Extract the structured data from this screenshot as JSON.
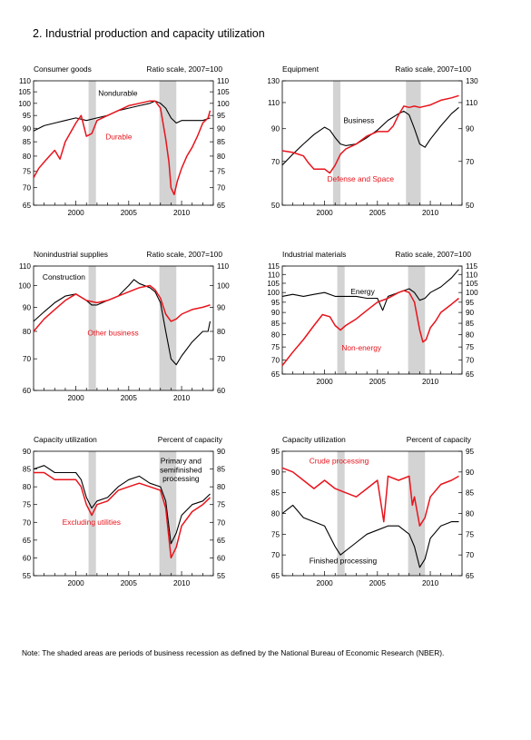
{
  "page": {
    "title": "2.  Industrial production and capacity utilization",
    "note": "Note: The shaded areas are periods of business recession as defined by the National Bureau of Economic Research (NBER)."
  },
  "colors": {
    "black_series": "#000000",
    "red_series": "#e8141c",
    "recession_shading": "#d3d3d3"
  },
  "chart_data": [
    {
      "type": "line",
      "title": "Consumer goods",
      "scale_label": "Ratio scale, 2007=100",
      "log_scale": true,
      "ylim": [
        65,
        110
      ],
      "yticks": [
        65,
        70,
        75,
        80,
        85,
        90,
        95,
        100,
        105,
        110
      ],
      "xlim": [
        1996,
        2013
      ],
      "xticks": [
        2000,
        2005,
        2010
      ],
      "recessions": [
        [
          2001.2,
          2001.9
        ],
        [
          2007.9,
          2009.5
        ]
      ],
      "series": [
        {
          "name": "Nondurable",
          "color": "#000000",
          "x": [
            1996,
            1997,
            1998,
            1999,
            2000,
            2001,
            2002,
            2003,
            2004,
            2005,
            2006,
            2007,
            2007.5,
            2008,
            2008.5,
            2009,
            2009.5,
            2010,
            2011,
            2012,
            2012.7
          ],
          "y": [
            89,
            91,
            92,
            93,
            94,
            93,
            94,
            95,
            97,
            98,
            99,
            100,
            101,
            100,
            98,
            94,
            92,
            93,
            93,
            93,
            94
          ]
        },
        {
          "name": "Durable",
          "color": "#e8141c",
          "x": [
            1996,
            1996.5,
            1997,
            1997.5,
            1998,
            1998.5,
            1999,
            2000,
            2000.5,
            2001,
            2001.5,
            2002,
            2003,
            2004,
            2005,
            2006,
            2007,
            2007.5,
            2008,
            2008.5,
            2008.8,
            2009,
            2009.3,
            2009.6,
            2010,
            2010.5,
            2011,
            2011.5,
            2012,
            2012.5,
            2012.7
          ],
          "y": [
            73,
            76,
            78,
            80,
            82,
            79,
            85,
            92,
            95,
            87,
            88,
            93,
            95,
            97,
            99,
            100,
            101,
            101,
            98,
            86,
            78,
            70,
            68,
            72,
            76,
            80,
            83,
            87,
            92,
            94,
            97
          ]
        }
      ],
      "labels": [
        {
          "text": "Nondurable",
          "color": "#000000"
        },
        {
          "text": "Durable",
          "color": "#e8141c"
        }
      ]
    },
    {
      "type": "line",
      "title": "Equipment",
      "scale_label": "Ratio scale, 2007=100",
      "log_scale": true,
      "ylim": [
        50,
        130
      ],
      "yticks": [
        50,
        70,
        90,
        110,
        130
      ],
      "xlim": [
        1996,
        2013
      ],
      "xticks": [
        2000,
        2005,
        2010
      ],
      "recessions": [
        [
          2000.8,
          2001.5
        ],
        [
          2007.7,
          2009.1
        ]
      ],
      "series": [
        {
          "name": "Business",
          "color": "#000000",
          "x": [
            1996,
            1997,
            1998,
            1999,
            2000,
            2000.5,
            2001,
            2001.5,
            2002,
            2003,
            2004,
            2005,
            2006,
            2007,
            2007.5,
            2008,
            2008.5,
            2009,
            2009.5,
            2010,
            2011,
            2012,
            2012.7
          ],
          "y": [
            68,
            74,
            80,
            86,
            91,
            89,
            84,
            80,
            79,
            80,
            84,
            89,
            96,
            101,
            103,
            100,
            90,
            80,
            78,
            83,
            92,
            101,
            106
          ]
        },
        {
          "name": "Defense and Space",
          "color": "#e8141c",
          "x": [
            1996,
            1997,
            1998,
            1998.5,
            1999,
            2000,
            2000.5,
            2001,
            2001.5,
            2002,
            2003,
            2004,
            2005,
            2006,
            2006.5,
            2007,
            2007.5,
            2008,
            2008.5,
            2009,
            2010,
            2011,
            2012,
            2012.7
          ],
          "y": [
            76,
            75,
            73,
            69,
            66,
            66,
            64,
            68,
            74,
            77,
            80,
            85,
            88,
            88,
            92,
            100,
            107,
            106,
            107,
            106,
            108,
            112,
            114,
            116
          ]
        }
      ],
      "labels": [
        {
          "text": "Business",
          "color": "#000000"
        },
        {
          "text": "Defense and Space",
          "color": "#e8141c"
        }
      ]
    },
    {
      "type": "line",
      "title": "Nonindustrial supplies",
      "scale_label": "Ratio scale, 2007=100",
      "log_scale": true,
      "ylim": [
        60,
        110
      ],
      "yticks": [
        60,
        70,
        80,
        90,
        100,
        110
      ],
      "xlim": [
        1996,
        2013
      ],
      "xticks": [
        2000,
        2005,
        2010
      ],
      "recessions": [
        [
          2001.2,
          2001.9
        ],
        [
          2007.9,
          2009.5
        ]
      ],
      "series": [
        {
          "name": "Construction",
          "color": "#000000",
          "x": [
            1996,
            1997,
            1998,
            1999,
            2000,
            2001,
            2001.5,
            2002,
            2003,
            2004,
            2005,
            2005.5,
            2006,
            2007,
            2007.5,
            2008,
            2008.5,
            2009,
            2009.5,
            2010,
            2011,
            2012,
            2012.5,
            2012.7
          ],
          "y": [
            84,
            88,
            92,
            95,
            96,
            93,
            91,
            91,
            93,
            95,
            100,
            103,
            101,
            99,
            97,
            92,
            80,
            70,
            68,
            71,
            76,
            80,
            80,
            84
          ]
        },
        {
          "name": "Other business",
          "color": "#e8141c",
          "x": [
            1996,
            1997,
            1998,
            1999,
            2000,
            2001,
            2002,
            2003,
            2004,
            2005,
            2006,
            2007,
            2007.5,
            2008,
            2008.5,
            2009,
            2009.5,
            2010,
            2011,
            2012,
            2012.7
          ],
          "y": [
            80,
            85,
            89,
            93,
            96,
            93,
            92,
            93,
            95,
            97,
            99,
            100,
            98,
            94,
            87,
            84,
            85,
            87,
            89,
            90,
            91
          ]
        }
      ],
      "labels": [
        {
          "text": "Construction",
          "color": "#000000"
        },
        {
          "text": "Other business",
          "color": "#e8141c"
        }
      ]
    },
    {
      "type": "line",
      "title": "Industrial materials",
      "scale_label": "Ratio scale, 2007=100",
      "log_scale": true,
      "ylim": [
        65,
        115
      ],
      "yticks": [
        65,
        70,
        75,
        80,
        85,
        90,
        95,
        100,
        105,
        110,
        115
      ],
      "xlim": [
        1996,
        2013
      ],
      "xticks": [
        2000,
        2005,
        2010
      ],
      "recessions": [
        [
          2001.2,
          2001.9
        ],
        [
          2007.9,
          2009.5
        ]
      ],
      "series": [
        {
          "name": "Energy",
          "color": "#000000",
          "x": [
            1996,
            1997,
            1998,
            1999,
            2000,
            2001,
            2002,
            2003,
            2004,
            2005,
            2005.5,
            2006,
            2007,
            2008,
            2008.5,
            2009,
            2009.5,
            2010,
            2011,
            2012,
            2012.7
          ],
          "y": [
            98,
            99,
            98,
            99,
            100,
            98,
            98,
            98,
            97,
            97,
            91,
            98,
            100,
            102,
            100,
            96,
            97,
            100,
            103,
            108,
            113
          ]
        },
        {
          "name": "Non-energy",
          "color": "#e8141c",
          "x": [
            1996,
            1997,
            1998,
            1999,
            1999.8,
            2000.5,
            2001,
            2001.5,
            2002,
            2003,
            2004,
            2005,
            2006,
            2007,
            2007.5,
            2008,
            2008.5,
            2009,
            2009.3,
            2009.6,
            2010,
            2010.5,
            2011,
            2012,
            2012.7
          ],
          "y": [
            68,
            73,
            78,
            84,
            89,
            88,
            84,
            82,
            84,
            87,
            91,
            95,
            97,
            100,
            101,
            100,
            95,
            82,
            77,
            78,
            83,
            86,
            90,
            94,
            97
          ]
        }
      ],
      "labels": [
        {
          "text": "Energy",
          "color": "#000000"
        },
        {
          "text": "Non-energy",
          "color": "#e8141c"
        }
      ]
    },
    {
      "type": "line",
      "title": "Capacity utilization",
      "scale_label": "Percent of capacity",
      "log_scale": false,
      "ylim": [
        55,
        90
      ],
      "yticks": [
        55,
        60,
        65,
        70,
        75,
        80,
        85,
        90
      ],
      "xlim": [
        1996,
        2013
      ],
      "xticks": [
        2000,
        2005,
        2010
      ],
      "recessions": [
        [
          2001.2,
          2001.9
        ],
        [
          2007.9,
          2009.5
        ]
      ],
      "series": [
        {
          "name": "Primary and semifinished processing",
          "color": "#000000",
          "x": [
            1996,
            1997,
            1998,
            1999,
            2000,
            2000.5,
            2001,
            2001.5,
            2002,
            2003,
            2004,
            2005,
            2006,
            2007,
            2008,
            2008.5,
            2009,
            2009.5,
            2010,
            2011,
            2012,
            2012.7
          ],
          "y": [
            85,
            86,
            84,
            84,
            84,
            82,
            77,
            74,
            76,
            77,
            80,
            82,
            83,
            81,
            80,
            76,
            64,
            67,
            72,
            75,
            76,
            78
          ]
        },
        {
          "name": "Excluding utilities",
          "color": "#e8141c",
          "x": [
            1996,
            1997,
            1998,
            1999,
            2000,
            2000.5,
            2001,
            2001.5,
            2002,
            2003,
            2004,
            2005,
            2006,
            2007,
            2008,
            2008.5,
            2009,
            2009.5,
            2010,
            2011,
            2012,
            2012.7
          ],
          "y": [
            84,
            84,
            82,
            82,
            82,
            80,
            75,
            72,
            75,
            76,
            79,
            80,
            81,
            80,
            79,
            74,
            60,
            63,
            69,
            73,
            75,
            77
          ]
        }
      ],
      "labels": [
        {
          "text": "Primary and",
          "color": "#000000"
        },
        {
          "text": "semifinished",
          "color": "#000000"
        },
        {
          "text": "processing",
          "color": "#000000"
        },
        {
          "text": "Excluding utilities",
          "color": "#e8141c"
        }
      ]
    },
    {
      "type": "line",
      "title": "Capacity utilization",
      "scale_label": "Percent of capacity",
      "log_scale": false,
      "ylim": [
        65,
        95
      ],
      "yticks": [
        65,
        70,
        75,
        80,
        85,
        90,
        95
      ],
      "xlim": [
        1996,
        2013
      ],
      "xticks": [
        2000,
        2005,
        2010
      ],
      "recessions": [
        [
          2001.2,
          2001.9
        ],
        [
          2007.9,
          2009.5
        ]
      ],
      "series": [
        {
          "name": "Crude processing",
          "color": "#e8141c",
          "x": [
            1996,
            1997,
            1998,
            1999,
            2000,
            2001,
            2002,
            2003,
            2004,
            2005,
            2005.6,
            2005.9,
            2006,
            2007,
            2008,
            2008.3,
            2008.5,
            2009,
            2009.5,
            2010,
            2011,
            2012,
            2012.7
          ],
          "y": [
            91,
            90,
            88,
            86,
            88,
            86,
            85,
            84,
            86,
            88,
            78,
            86,
            89,
            88,
            89,
            82,
            84,
            77,
            79,
            84,
            87,
            88,
            89
          ]
        },
        {
          "name": "Finished processing",
          "color": "#000000",
          "x": [
            1996,
            1997,
            1998,
            1999,
            2000,
            2001,
            2001.5,
            2002,
            2003,
            2004,
            2005,
            2006,
            2007,
            2008,
            2008.5,
            2009,
            2009.5,
            2010,
            2011,
            2012,
            2012.7
          ],
          "y": [
            80,
            82,
            79,
            78,
            77,
            72,
            70,
            71,
            73,
            75,
            76,
            77,
            77,
            75,
            72,
            67,
            69,
            74,
            77,
            78,
            78
          ]
        }
      ],
      "labels": [
        {
          "text": "Crude processing",
          "color": "#e8141c"
        },
        {
          "text": "Finished processing",
          "color": "#000000"
        }
      ]
    }
  ]
}
